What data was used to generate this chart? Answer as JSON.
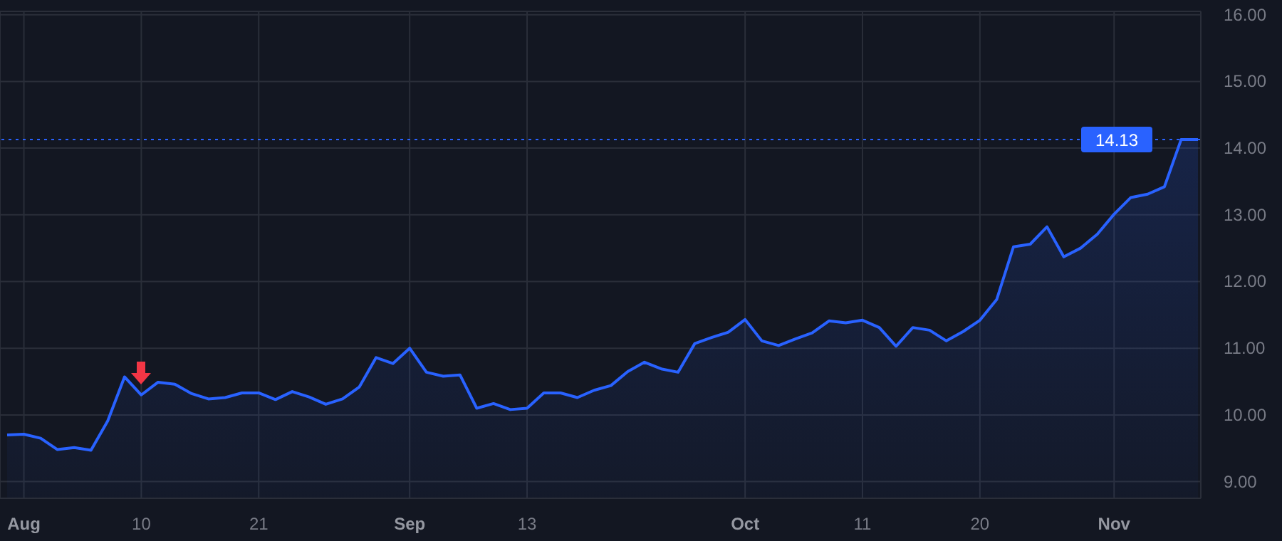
{
  "chart_data": {
    "type": "area",
    "categories": [
      null,
      "Aug",
      null,
      null,
      null,
      null,
      null,
      null,
      "10",
      null,
      null,
      null,
      null,
      null,
      null,
      "21",
      null,
      null,
      null,
      null,
      null,
      null,
      null,
      null,
      "Sep",
      null,
      null,
      null,
      null,
      null,
      null,
      "13",
      null,
      null,
      null,
      null,
      null,
      null,
      null,
      null,
      null,
      null,
      null,
      null,
      "Oct",
      null,
      null,
      null,
      null,
      null,
      null,
      "11",
      null,
      null,
      null,
      null,
      null,
      null,
      "20",
      null,
      null,
      null,
      null,
      null,
      null,
      null,
      "Nov",
      null,
      null,
      null,
      null,
      null
    ],
    "series": [
      {
        "color": "#2962ff",
        "values": [
          9.7,
          9.71,
          9.65,
          9.48,
          9.51,
          9.47,
          9.91,
          10.57,
          10.3,
          10.49,
          10.46,
          10.32,
          10.24,
          10.26,
          10.33,
          10.33,
          10.23,
          10.35,
          10.27,
          10.16,
          10.24,
          10.42,
          10.86,
          10.77,
          11.0,
          10.64,
          10.58,
          10.6,
          10.1,
          10.17,
          10.08,
          10.1,
          10.33,
          10.33,
          10.26,
          10.37,
          10.44,
          10.65,
          10.79,
          10.69,
          10.64,
          11.07,
          11.16,
          11.24,
          11.43,
          11.11,
          11.04,
          11.14,
          11.23,
          11.41,
          11.38,
          11.42,
          11.31,
          11.03,
          11.31,
          11.27,
          11.11,
          11.25,
          11.42,
          11.73,
          12.52,
          12.56,
          12.82,
          12.37,
          12.5,
          12.71,
          13.01,
          13.26,
          13.31,
          13.42,
          14.13,
          14.13
        ]
      }
    ],
    "ylim": [
      8.75,
      16.05
    ],
    "yticks": [
      {
        "value": 9,
        "label": "9.00"
      },
      {
        "value": 10,
        "label": "10.00"
      },
      {
        "value": 11,
        "label": "11.00"
      },
      {
        "value": 12,
        "label": "12.00"
      },
      {
        "value": 13,
        "label": "13.00"
      },
      {
        "value": 14,
        "label": "14.00"
      },
      {
        "value": 15,
        "label": "15.00"
      },
      {
        "value": 16,
        "label": "16.00"
      }
    ],
    "grid": true,
    "legend": false,
    "ref_lines": [
      {
        "axis": "y",
        "value": 14.13,
        "label": "14.13",
        "color": "#2962ff",
        "line_style": "dotted"
      }
    ]
  }
}
